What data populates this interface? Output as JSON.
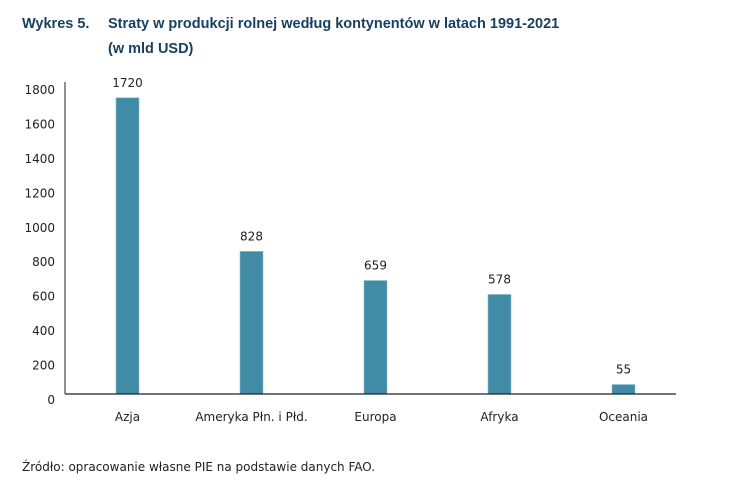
{
  "header": {
    "figure_label": "Wykres 5.",
    "title_line1": "Straty w produkcji rolnej według kontynentów w latach 1991-2021",
    "title_line2": "(w mld USD)"
  },
  "source": "Źródło: opracowanie własne PIE na podstawie danych FAO.",
  "colors": {
    "bar": "#428ba6",
    "bar_edge": "#8fc0d2",
    "title": "#173f5f",
    "axis": "#222222"
  },
  "chart_data": {
    "type": "bar",
    "title": "Straty w produkcji rolnej według kontynentów w latach 1991-2021 (w mld USD)",
    "xlabel": "",
    "ylabel": "",
    "categories": [
      "Azja",
      "Ameryka Płn. i Płd.",
      "Europa",
      "Afryka",
      "Oceania"
    ],
    "values": [
      1720,
      828,
      659,
      578,
      55
    ],
    "data_labels": [
      "1720",
      "828",
      "659",
      "578",
      "55"
    ],
    "ylim": [
      0,
      1800
    ],
    "yticks": [
      0,
      200,
      400,
      600,
      800,
      1000,
      1200,
      1400,
      1600,
      1800
    ],
    "ytick_labels": [
      "0",
      "200",
      "400",
      "600",
      "800",
      "1000",
      "1200",
      "1400",
      "1600",
      "1800"
    ],
    "grid": false,
    "legend": "none"
  }
}
